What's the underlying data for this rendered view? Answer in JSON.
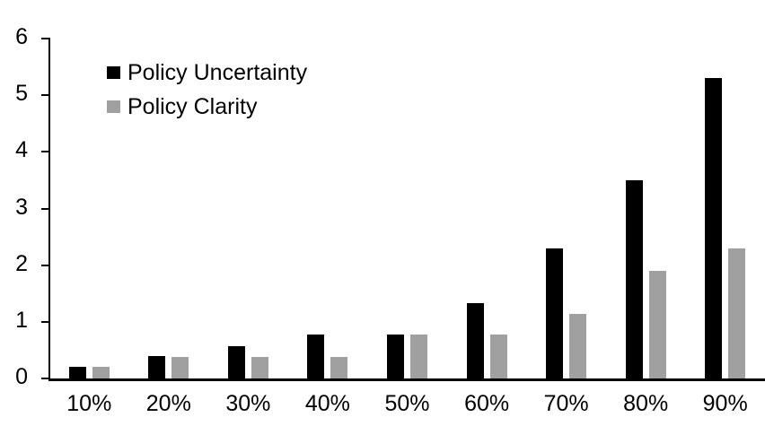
{
  "chart_data": {
    "type": "bar",
    "title": "",
    "xlabel": "",
    "ylabel": "",
    "categories": [
      "10%",
      "20%",
      "30%",
      "40%",
      "50%",
      "60%",
      "70%",
      "80%",
      "90%"
    ],
    "series": [
      {
        "name": "Policy Uncertainty",
        "color": "#000000",
        "values": [
          0.2,
          0.4,
          0.57,
          0.77,
          0.78,
          1.33,
          2.3,
          3.5,
          5.3
        ]
      },
      {
        "name": "Policy Clarity",
        "color": "#a0a0a0",
        "values": [
          0.2,
          0.38,
          0.38,
          0.38,
          0.77,
          0.77,
          1.14,
          1.9,
          2.3
        ]
      }
    ],
    "ylim": [
      0,
      6
    ],
    "yticks": [
      0,
      1,
      2,
      3,
      4,
      5,
      6
    ],
    "grid": false,
    "legend_position": "upper-left-inside",
    "axis_color": "#000000",
    "background_color": "#ffffff"
  }
}
